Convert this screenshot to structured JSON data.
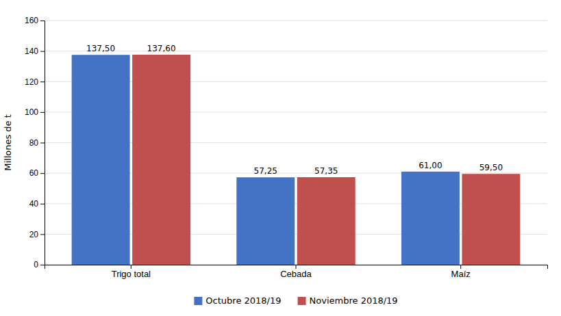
{
  "chart_data": {
    "type": "bar",
    "categories": [
      "Trigo total",
      "Cebada",
      "Maíz"
    ],
    "series": [
      {
        "name": "Octubre 2018/19",
        "color": "#4472C4",
        "values": [
          137.5,
          57.25,
          61.0
        ],
        "value_labels": [
          "137,50",
          "57,25",
          "61,00"
        ]
      },
      {
        "name": "Noviembre 2018/19",
        "color": "#C0504D",
        "values": [
          137.6,
          57.35,
          59.5
        ],
        "value_labels": [
          "137,60",
          "57,35",
          "59,50"
        ]
      }
    ],
    "ylabel": "Millones de t",
    "ylim": [
      0,
      160
    ],
    "yticks": [
      0,
      20,
      40,
      60,
      80,
      100,
      120,
      140,
      160
    ],
    "grid": true,
    "legend": "bottom",
    "data_labels": true
  }
}
